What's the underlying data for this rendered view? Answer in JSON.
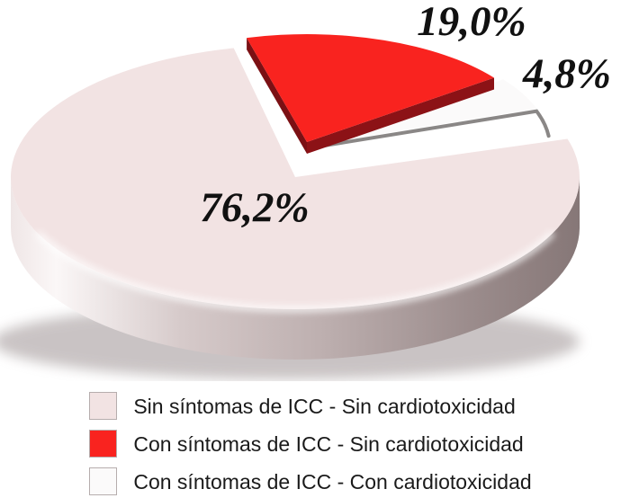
{
  "chart_data": {
    "type": "pie",
    "title": "",
    "effect_3d": true,
    "legend_position": "bottom",
    "series": [
      {
        "label": "Sin síntomas de ICC - Sin cardiotoxicidad",
        "value": 76.2,
        "display": "76,2%",
        "color": "#f2e3e3"
      },
      {
        "label": "Con síntomas de ICC - Sin cardiotoxicidad",
        "value": 19.0,
        "display": "19,0%",
        "color": "#f9231f"
      },
      {
        "label": "Con síntomas de ICC - Con cardiotoxicidad",
        "value": 4.8,
        "display": "4,8%",
        "color": "#fbfafa"
      }
    ],
    "style": {
      "red_side": "#7b1014",
      "red_side_right": "#8c1216",
      "white_edge": "#8a8786",
      "shadow": "#94898a",
      "label_color": "#111111"
    }
  }
}
